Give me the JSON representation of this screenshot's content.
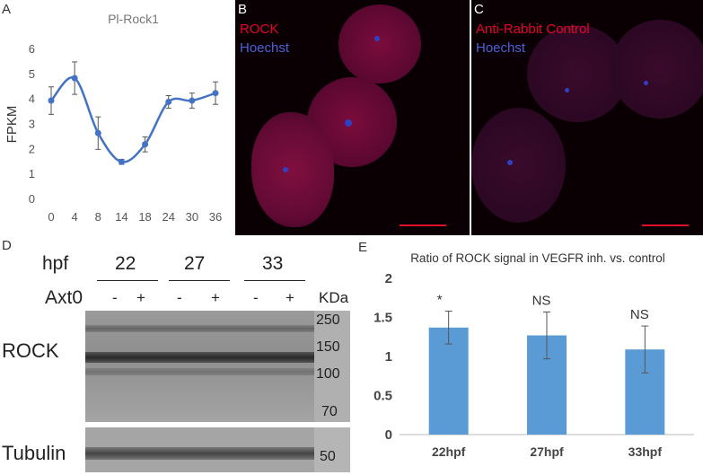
{
  "panel_labels": {
    "a": "A",
    "b": "B",
    "c": "C",
    "d": "D",
    "e": "E"
  },
  "panel_a": {
    "chart_data": {
      "type": "line",
      "title": "Pl-Rock1",
      "ylabel": "FPKM",
      "xlabel": "",
      "categories": [
        "0",
        "4",
        "8",
        "14",
        "18",
        "24",
        "30",
        "36"
      ],
      "values": [
        3.95,
        4.85,
        2.65,
        1.5,
        2.2,
        3.9,
        3.95,
        4.25
      ],
      "errors": [
        0.55,
        0.65,
        0.65,
        0.1,
        0.3,
        0.25,
        0.3,
        0.45
      ],
      "ylim": [
        0,
        6
      ],
      "yticks": [
        0,
        1,
        2,
        3,
        4,
        5,
        6
      ],
      "color": "#4472c4"
    }
  },
  "panel_b": {
    "label1": "ROCK",
    "label2": "Hoechst"
  },
  "panel_c": {
    "label1": "Anti-Rabbit Control",
    "label2": "Hoechst"
  },
  "panel_d": {
    "hpf_label": "hpf",
    "timepoints": [
      "22",
      "27",
      "33"
    ],
    "axt_label": "Axt0",
    "signs": [
      "-",
      "+",
      "-",
      "+",
      "-",
      "+"
    ],
    "kda_label": "KDa",
    "markers": [
      "250",
      "150",
      "100",
      "70"
    ],
    "tubulin_marker": "50",
    "rock_label": "ROCK",
    "tubulin_label": "Tubulin"
  },
  "panel_e": {
    "chart_data": {
      "type": "bar",
      "title": "Ratio of ROCK signal in VEGFR inh. vs. control",
      "categories": [
        "22hpf",
        "27hpf",
        "33hpf"
      ],
      "values": [
        1.37,
        1.27,
        1.09
      ],
      "errors": [
        0.21,
        0.3,
        0.3
      ],
      "annotations": [
        "*",
        "NS",
        "NS"
      ],
      "ylim": [
        0,
        2
      ],
      "yticks": [
        "0",
        "0.5",
        "1",
        "1.5",
        "2"
      ],
      "xlabel": "",
      "ylabel": "",
      "color": "#5b9bd5"
    }
  }
}
